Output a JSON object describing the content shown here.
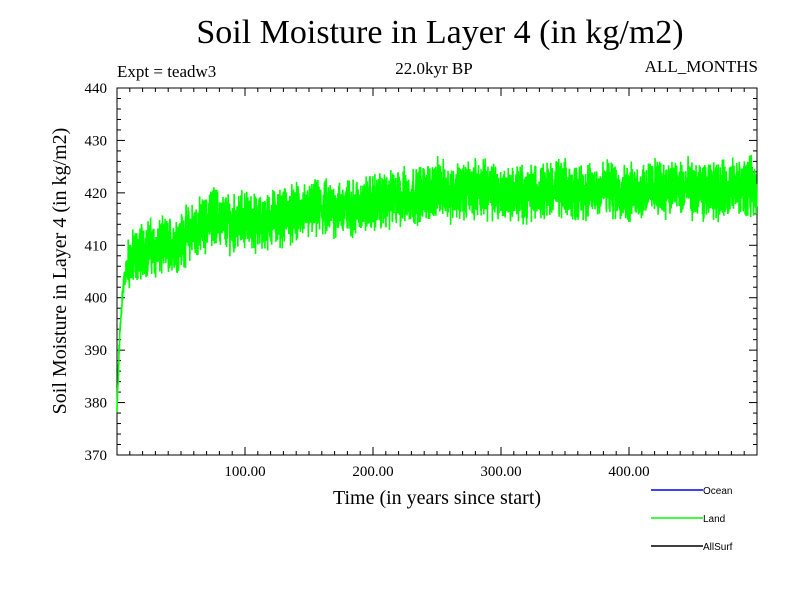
{
  "header": {
    "title": "Soil Moisture in Layer 4 (in kg/m2)",
    "experiment": "Expt = teadw3",
    "period": "22.0kyr BP",
    "months": "ALL_MONTHS"
  },
  "chart_data": {
    "type": "line",
    "title": "Soil Moisture in Layer 4 (in kg/m2)",
    "xlabel": "Time (in years since start)",
    "ylabel": "Soil Moisture in Layer 4 (in kg/m2)",
    "xlim": [
      0,
      500
    ],
    "ylim": [
      370,
      440
    ],
    "x_ticks": [
      100,
      200,
      300,
      400
    ],
    "x_tick_labels": [
      "100.00",
      "200.00",
      "300.00",
      "400.00"
    ],
    "y_ticks": [
      370,
      380,
      390,
      400,
      410,
      420,
      430,
      440
    ],
    "y_tick_labels": [
      "370",
      "380",
      "390",
      "400",
      "410",
      "420",
      "430",
      "440"
    ],
    "grid": false,
    "legend_position": "bottom-right",
    "series": [
      {
        "name": "Ocean",
        "color": "#0000ff",
        "x": [],
        "values": []
      },
      {
        "name": "Land",
        "color": "#00ff00",
        "x": [
          0,
          2,
          4,
          6,
          8,
          10,
          15,
          20,
          25,
          30,
          40,
          50,
          60,
          70,
          75,
          80,
          90,
          100,
          110,
          120,
          140,
          160,
          180,
          200,
          220,
          240,
          250,
          260,
          280,
          300,
          320,
          340,
          360,
          380,
          400,
          420,
          440,
          460,
          480,
          500
        ],
        "values": [
          378,
          392,
          400,
          404,
          406,
          407,
          408,
          409,
          410,
          409,
          410,
          411,
          413,
          414,
          416,
          415,
          414,
          415,
          414,
          415,
          416,
          417,
          417,
          418,
          419,
          420,
          421,
          420,
          421,
          420,
          420,
          421,
          420,
          421,
          420,
          421,
          421,
          420,
          421,
          421
        ],
        "noise_amplitude": 4
      },
      {
        "name": "AllSurf",
        "color": "#000000",
        "x": [],
        "values": []
      }
    ]
  }
}
